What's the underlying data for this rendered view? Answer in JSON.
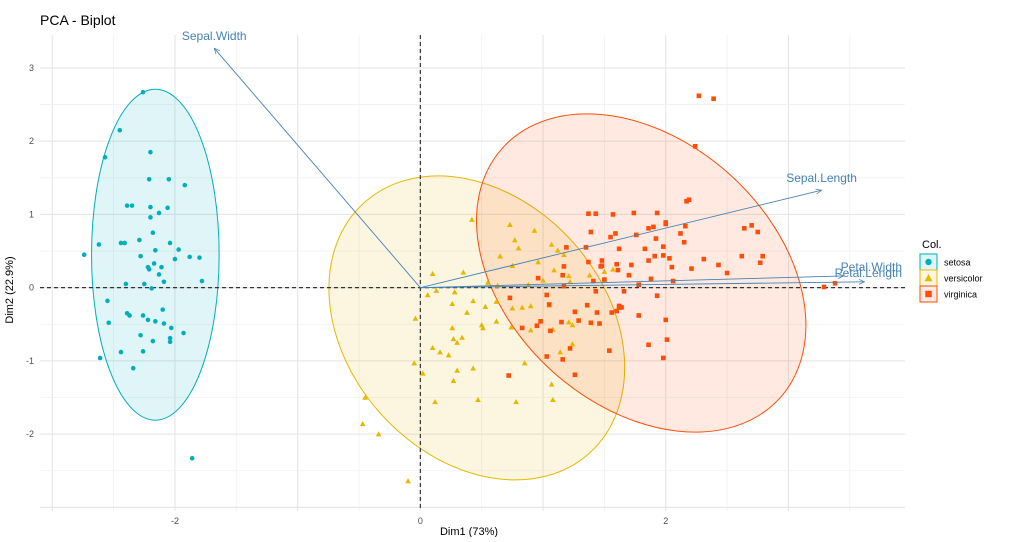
{
  "chart_data": {
    "type": "scatter",
    "title": "PCA - Biplot",
    "xlabel": "Dim1 (73%)",
    "ylabel": "Dim2 (22.9%)",
    "xlim": [
      -3.1,
      3.95
    ],
    "ylim": [
      -3.05,
      3.45
    ],
    "x_ticks": [
      -2,
      0,
      2
    ],
    "y_ticks": [
      -2,
      -1,
      0,
      1,
      2,
      3
    ],
    "grid": true,
    "legend_title": "Col.",
    "legend_position": "right",
    "colors": {
      "setosa": "#00AFBB",
      "versicolor": "#E7B800",
      "virginica": "#FC4E07",
      "variables": "#4682B4"
    },
    "series": [
      {
        "name": "setosa",
        "marker": "circle",
        "points": [
          [
            -2.26,
            2.67
          ],
          [
            -2.45,
            2.15
          ],
          [
            -2.57,
            1.78
          ],
          [
            -2.2,
            1.85
          ],
          [
            -2.21,
            1.48
          ],
          [
            -2.05,
            1.48
          ],
          [
            -1.92,
            1.4
          ],
          [
            -2.35,
            1.12
          ],
          [
            -2.39,
            1.12
          ],
          [
            -2.2,
            1.1
          ],
          [
            -2.13,
            1.02
          ],
          [
            -2.06,
            1.09
          ],
          [
            -2.2,
            0.96
          ],
          [
            -2.62,
            0.59
          ],
          [
            -2.44,
            0.61
          ],
          [
            -2.41,
            0.61
          ],
          [
            -2.29,
            0.65
          ],
          [
            -2.18,
            0.75
          ],
          [
            -2.04,
            0.61
          ],
          [
            -2.74,
            0.45
          ],
          [
            -2.28,
            0.43
          ],
          [
            -2.16,
            0.51
          ],
          [
            -2.22,
            0.28
          ],
          [
            -2.21,
            0.25
          ],
          [
            -2.17,
            0.33
          ],
          [
            -2.11,
            0.28
          ],
          [
            -2.0,
            0.39
          ],
          [
            -1.97,
            0.52
          ],
          [
            -1.88,
            0.42
          ],
          [
            -1.8,
            0.41
          ],
          [
            -2.4,
            0.05
          ],
          [
            -2.25,
            0.05
          ],
          [
            -2.09,
            0.08
          ],
          [
            -2.13,
            0.18
          ],
          [
            -1.78,
            0.09
          ],
          [
            -2.19,
            -0.01
          ],
          [
            -2.55,
            -0.18
          ],
          [
            -2.39,
            -0.35
          ],
          [
            -2.37,
            -0.38
          ],
          [
            -2.26,
            -0.38
          ],
          [
            -2.1,
            -0.3
          ],
          [
            -2.54,
            -0.48
          ],
          [
            -2.22,
            -0.44
          ],
          [
            -2.16,
            -0.46
          ],
          [
            -2.09,
            -0.49
          ],
          [
            -2.03,
            -0.55
          ],
          [
            -1.93,
            -0.62
          ],
          [
            -2.28,
            -0.65
          ],
          [
            -2.18,
            -0.73
          ],
          [
            -2.04,
            -0.69
          ],
          [
            -2.04,
            -0.74
          ],
          [
            -2.26,
            -0.87
          ],
          [
            -2.44,
            -0.88
          ],
          [
            -2.61,
            -0.96
          ],
          [
            -2.34,
            -1.1
          ],
          [
            -1.86,
            -2.33
          ]
        ]
      },
      {
        "name": "versicolor",
        "marker": "triangle",
        "points": [
          [
            0.42,
            0.93
          ],
          [
            0.73,
            0.86
          ],
          [
            0.93,
            0.78
          ],
          [
            0.77,
            0.65
          ],
          [
            0.65,
            0.43
          ],
          [
            0.8,
            0.54
          ],
          [
            1.07,
            0.59
          ],
          [
            1.17,
            0.45
          ],
          [
            1.12,
            0.51
          ],
          [
            0.75,
            0.3
          ],
          [
            0.96,
            0.35
          ],
          [
            1.09,
            0.24
          ],
          [
            1.21,
            0.16
          ],
          [
            1.38,
            0.17
          ],
          [
            1.5,
            0.22
          ],
          [
            1.57,
            0.25
          ],
          [
            0.1,
            0.19
          ],
          [
            0.35,
            0.21
          ],
          [
            0.55,
            0.07
          ],
          [
            0.63,
            0.03
          ],
          [
            0.88,
            0.04
          ],
          [
            1.0,
            0.1
          ],
          [
            1.22,
            0.08
          ],
          [
            0.06,
            -0.1
          ],
          [
            0.13,
            -0.04
          ],
          [
            0.28,
            -0.06
          ],
          [
            0.26,
            -0.22
          ],
          [
            0.38,
            -0.34
          ],
          [
            0.43,
            -0.18
          ],
          [
            0.53,
            -0.26
          ],
          [
            0.62,
            -0.19
          ],
          [
            0.75,
            -0.28
          ],
          [
            0.83,
            -0.27
          ],
          [
            0.9,
            -0.25
          ],
          [
            1.05,
            -0.24
          ],
          [
            -0.04,
            -0.42
          ],
          [
            0.26,
            -0.55
          ],
          [
            0.3,
            -0.75
          ],
          [
            0.27,
            -0.7
          ],
          [
            0.5,
            -0.51
          ],
          [
            0.62,
            -0.46
          ],
          [
            0.74,
            -0.54
          ],
          [
            0.9,
            -0.58
          ],
          [
            1.08,
            -0.57
          ],
          [
            1.21,
            -0.47
          ],
          [
            1.24,
            -0.51
          ],
          [
            0.51,
            -0.55
          ],
          [
            0.1,
            -0.82
          ],
          [
            0.16,
            -0.88
          ],
          [
            0.23,
            -0.92
          ],
          [
            0.34,
            -0.68
          ],
          [
            0.85,
            -1.03
          ],
          [
            1.07,
            -1.32
          ],
          [
            1.14,
            -0.88
          ],
          [
            1.24,
            -0.77
          ],
          [
            -0.05,
            -1.03
          ],
          [
            0.02,
            -1.17
          ],
          [
            0.3,
            -1.13
          ],
          [
            0.43,
            -1.1
          ],
          [
            0.27,
            -1.27
          ],
          [
            0.47,
            -1.53
          ],
          [
            0.78,
            -1.56
          ],
          [
            1.08,
            -1.53
          ],
          [
            0.12,
            -1.56
          ],
          [
            -0.45,
            -1.5
          ],
          [
            -0.47,
            -1.86
          ],
          [
            -0.34,
            -2.0
          ],
          [
            -0.1,
            -2.64
          ]
        ]
      },
      {
        "name": "virginica",
        "marker": "square",
        "points": [
          [
            2.27,
            2.62
          ],
          [
            2.39,
            2.58
          ],
          [
            2.24,
            1.93
          ],
          [
            2.19,
            1.2
          ],
          [
            2.17,
            1.18
          ],
          [
            1.37,
            1.01
          ],
          [
            1.43,
            1.01
          ],
          [
            1.74,
            1.02
          ],
          [
            1.57,
            1.0
          ],
          [
            1.93,
            1.02
          ],
          [
            2.0,
            0.89
          ],
          [
            2.0,
            0.87
          ],
          [
            1.9,
            0.83
          ],
          [
            1.86,
            0.81
          ],
          [
            2.16,
            0.84
          ],
          [
            1.39,
            0.76
          ],
          [
            1.59,
            0.74
          ],
          [
            1.55,
            0.69
          ],
          [
            1.76,
            0.72
          ],
          [
            1.92,
            0.67
          ],
          [
            2.12,
            0.74
          ],
          [
            2.7,
            0.85
          ],
          [
            2.64,
            0.81
          ],
          [
            2.79,
            0.43
          ],
          [
            2.75,
            0.76
          ],
          [
            1.19,
            0.55
          ],
          [
            1.35,
            0.55
          ],
          [
            1.48,
            0.37
          ],
          [
            1.62,
            0.53
          ],
          [
            1.83,
            0.53
          ],
          [
            1.98,
            0.56
          ],
          [
            2.15,
            0.62
          ],
          [
            2.31,
            0.39
          ],
          [
            2.43,
            0.31
          ],
          [
            1.91,
            0.43
          ],
          [
            1.98,
            0.44
          ],
          [
            2.03,
            0.4
          ],
          [
            1.86,
            0.37
          ],
          [
            1.17,
            0.29
          ],
          [
            1.37,
            0.35
          ],
          [
            1.48,
            0.3
          ],
          [
            1.6,
            0.32
          ],
          [
            1.72,
            0.31
          ],
          [
            2.05,
            0.28
          ],
          [
            2.21,
            0.26
          ],
          [
            2.5,
            0.2
          ],
          [
            1.47,
            0.29
          ],
          [
            1.61,
            0.24
          ],
          [
            0.96,
            0.13
          ],
          [
            1.16,
            0.17
          ],
          [
            1.41,
            0.09
          ],
          [
            1.5,
            0.11
          ],
          [
            1.7,
            0.17
          ],
          [
            1.88,
            0.12
          ],
          [
            2.06,
            0.09
          ],
          [
            1.17,
            0.02
          ],
          [
            1.78,
            0.04
          ],
          [
            0.73,
            -0.14
          ],
          [
            1.03,
            -0.1
          ],
          [
            1.43,
            -0.05
          ],
          [
            1.66,
            -0.05
          ],
          [
            1.93,
            -0.11
          ],
          [
            1.05,
            -0.23
          ],
          [
            1.26,
            -0.33
          ],
          [
            1.36,
            -0.24
          ],
          [
            1.44,
            -0.34
          ],
          [
            1.6,
            -0.32
          ],
          [
            1.62,
            -0.27
          ],
          [
            1.62,
            -0.25
          ],
          [
            1.64,
            -0.27
          ],
          [
            0.98,
            -0.46
          ],
          [
            1.15,
            -0.47
          ],
          [
            1.39,
            -0.48
          ],
          [
            1.46,
            -0.49
          ],
          [
            1.56,
            -0.34
          ],
          [
            1.78,
            -0.38
          ],
          [
            2.0,
            -0.44
          ],
          [
            0.83,
            -0.55
          ],
          [
            0.95,
            -0.52
          ],
          [
            1.06,
            -0.59
          ],
          [
            1.29,
            -0.45
          ],
          [
            1.54,
            -0.86
          ],
          [
            2.01,
            -0.71
          ],
          [
            1.22,
            -0.83
          ],
          [
            1.03,
            -0.94
          ],
          [
            1.16,
            -0.98
          ],
          [
            1.26,
            -1.19
          ],
          [
            1.86,
            -0.78
          ],
          [
            1.98,
            -0.96
          ],
          [
            0.72,
            -1.2
          ],
          [
            3.29,
            0.01
          ],
          [
            2.62,
            0.43
          ],
          [
            2.77,
            0.34
          ],
          [
            3.38,
            0.06
          ]
        ]
      }
    ],
    "variables": [
      {
        "name": "Sepal.Width",
        "x": -1.68,
        "y": 3.27
      },
      {
        "name": "Sepal.Length",
        "x": 3.27,
        "y": 1.33
      },
      {
        "name": "Petal.Width",
        "x": 3.45,
        "y": 0.16
      },
      {
        "name": "Petal.Length",
        "x": 3.62,
        "y": 0.08
      }
    ],
    "ellipses": [
      {
        "series": "setosa",
        "cx": -2.16,
        "cy": 0.45,
        "rx": 0.52,
        "ry": 2.26,
        "angle": 0
      },
      {
        "series": "versicolor",
        "cx": 0.46,
        "cy": -0.55,
        "rx": 1.05,
        "ry": 2.3,
        "angle": -42
      },
      {
        "series": "virginica",
        "cx": 1.8,
        "cy": 0.2,
        "rx": 1.08,
        "ry": 2.55,
        "angle": -48
      }
    ]
  }
}
